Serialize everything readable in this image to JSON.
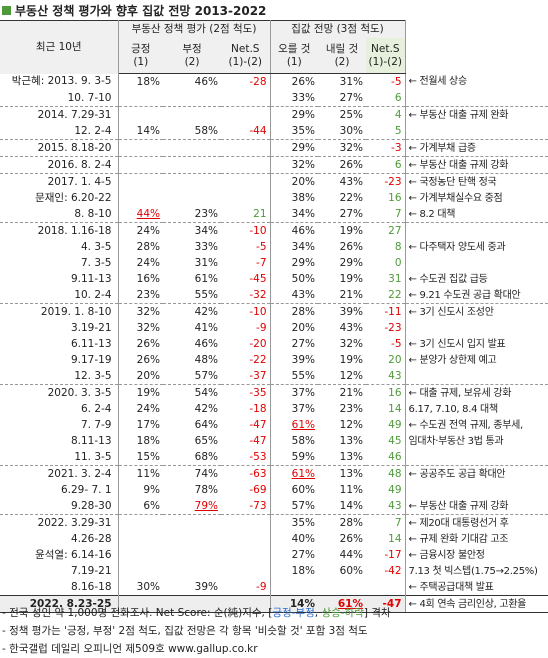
{
  "title": "부동산 정책 평가와 향후 집값 전망 2013-2022",
  "header": {
    "period": "최근 10년",
    "group1": "부동산 정책 평가 (2점 척도)",
    "group2": "집값 전망 (3점 척도)",
    "columns": [
      {
        "name": "긍정",
        "sub": "(1)"
      },
      {
        "name": "부정",
        "sub": "(2)"
      },
      {
        "name": "Net.S",
        "sub": "(1)-(2)"
      },
      {
        "name": "오를 것",
        "sub": "(1)"
      },
      {
        "name": "내릴 것",
        "sub": "(2)"
      },
      {
        "name": "Net.S",
        "sub": "(1)-(2)"
      }
    ]
  },
  "table": {
    "rows": [
      [
        "박근혜: 2013. 9. 3-5",
        "18%",
        "46%",
        -28,
        "26%",
        "31%",
        -5,
        "← 전월세 상승"
      ],
      [
        "10. 7-10",
        null,
        null,
        null,
        "33%",
        "27%",
        6,
        null
      ],
      [
        "2014. 7.29-31",
        null,
        null,
        null,
        "29%",
        "25%",
        4,
        "← 부동산 대출 규제 완화"
      ],
      [
        "12. 2-4",
        "14%",
        "58%",
        -44,
        "35%",
        "30%",
        5,
        null
      ],
      [
        "2015. 8.18-20",
        null,
        null,
        null,
        "29%",
        "32%",
        -3,
        "← 가계부채 급증"
      ],
      [
        "2016. 8. 2-4",
        null,
        null,
        null,
        "32%",
        "26%",
        6,
        "← 부동산 대출 규제 강화"
      ],
      [
        "2017. 1. 4-5",
        null,
        null,
        null,
        "20%",
        "43%",
        -23,
        "← 국정농단 탄핵 정국"
      ],
      [
        "문재인: 6.20-22",
        null,
        null,
        null,
        "38%",
        "22%",
        16,
        "← 가계부채실수요 중점"
      ],
      [
        "8. 8-10",
        "44%",
        "23%",
        21,
        "34%",
        "27%",
        7,
        "← 8.2 대책"
      ],
      [
        "2018. 1.16-18",
        "24%",
        "34%",
        -10,
        "46%",
        "19%",
        27,
        null
      ],
      [
        "4. 3-5",
        "28%",
        "33%",
        -5,
        "34%",
        "26%",
        8,
        "← 다주택자 양도세 중과"
      ],
      [
        "7. 3-5",
        "24%",
        "31%",
        -7,
        "29%",
        "29%",
        0,
        null
      ],
      [
        "9.11-13",
        "16%",
        "61%",
        -45,
        "50%",
        "19%",
        31,
        "← 수도권 집값 급등"
      ],
      [
        "10. 2-4",
        "23%",
        "55%",
        -32,
        "43%",
        "21%",
        22,
        "← 9.21 수도권 공급 확대안"
      ],
      [
        "2019. 1. 8-10",
        "32%",
        "42%",
        -10,
        "28%",
        "39%",
        -11,
        "← 3기 신도시 조성안"
      ],
      [
        "3.19-21",
        "32%",
        "41%",
        -9,
        "20%",
        "43%",
        -23,
        null
      ],
      [
        "6.11-13",
        "26%",
        "46%",
        -20,
        "27%",
        "32%",
        -5,
        "← 3기 신도시 입지 발표"
      ],
      [
        "9.17-19",
        "26%",
        "48%",
        -22,
        "39%",
        "19%",
        20,
        "← 분양가 상한제 예고"
      ],
      [
        "12. 3-5",
        "20%",
        "57%",
        -37,
        "55%",
        "12%",
        43,
        null
      ],
      [
        "2020. 3. 3-5",
        "19%",
        "54%",
        -35,
        "37%",
        "21%",
        16,
        "← 대출 규제, 보유세 강화"
      ],
      [
        "6. 2-4",
        "24%",
        "42%",
        -18,
        "37%",
        "23%",
        14,
        "6.17, 7.10, 8.4 대책"
      ],
      [
        "7. 7-9",
        "17%",
        "64%",
        -47,
        "61%",
        "12%",
        49,
        "← 수도권 전역 규제, 종부세,"
      ],
      [
        "8.11-13",
        "18%",
        "65%",
        -47,
        "58%",
        "13%",
        45,
        "임대차·부동산 3법 통과"
      ],
      [
        "11. 3-5",
        "15%",
        "68%",
        -53,
        "59%",
        "13%",
        46,
        null
      ],
      [
        "2021. 3. 2-4",
        "11%",
        "74%",
        -63,
        "61%",
        "13%",
        48,
        "← 공공주도 공급 확대안"
      ],
      [
        "6.29- 7. 1",
        "9%",
        "78%",
        -69,
        "60%",
        "11%",
        49,
        null
      ],
      [
        "9.28-30",
        "6%",
        "79%",
        -73,
        "57%",
        "14%",
        43,
        "← 부동산 대출 규제 강화"
      ],
      [
        "2022. 3.29-31",
        null,
        null,
        null,
        "35%",
        "28%",
        7,
        "← 제20대 대통령선거 후"
      ],
      [
        "4.26-28",
        null,
        null,
        null,
        "40%",
        "26%",
        14,
        "← 규제 완화 기대감 고조"
      ],
      [
        "윤석열: 6.14-16",
        null,
        null,
        null,
        "27%",
        "44%",
        -17,
        "← 금융시장 불안정"
      ],
      [
        "7.19-21",
        null,
        null,
        null,
        "18%",
        "60%",
        -42,
        "7.13 첫 빅스텝(1.75→2.25%)"
      ],
      [
        "8.16-18",
        "30%",
        "39%",
        -9,
        null,
        null,
        null,
        "← 주택공급대책 발표"
      ],
      [
        "2022. 8.23-25",
        null,
        null,
        null,
        "14%",
        "61%",
        -47,
        "← 4회 연속 금리인상, 고환율"
      ]
    ]
  },
  "notes": [
    [
      "- 전국 성인 약 1,000명 전화조사. Net Score: 순(純)지수, [",
      "긍정-부정",
      ", ",
      "상승-하락",
      "] 격차"
    ],
    [
      "- 정책 평가는 '긍정, 부정' 2점 척도, 집값 전망은 각 항목 '비슷할 것' 포함 3점 척도"
    ],
    [
      "- 한국갤럽 데일리 오피니언 제509호 www.gallup.co.kr"
    ]
  ]
}
